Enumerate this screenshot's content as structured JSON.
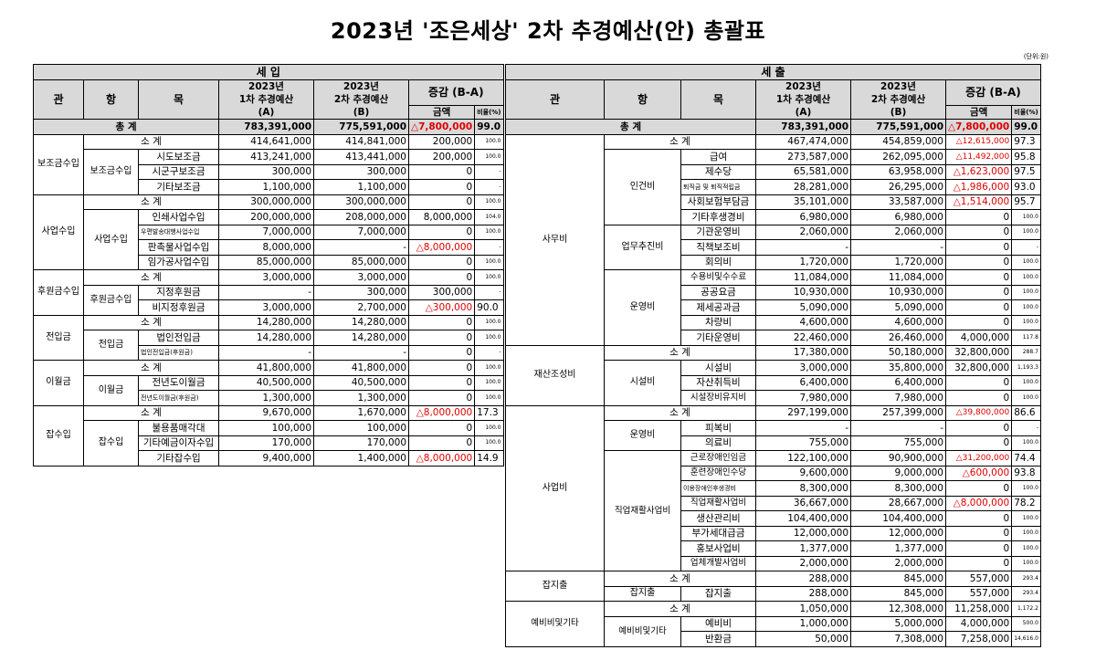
{
  "title": "2023년  '조은세상'  2차 추경예산(안) 총괄표",
  "unit": "(단위:원)",
  "income": {
    "section": "세    입",
    "headers": {
      "gwan": "관",
      "hang": "항",
      "mok": "목",
      "a_line1": "2023년",
      "a_line2": "1차 추경예산",
      "a_line3": "(A)",
      "b_line1": "2023년",
      "b_line2": "2차 추경예산",
      "b_line3": "(B)",
      "diff": "증감 (B-A)",
      "amount": "금액",
      "ratio": "비율(%)"
    },
    "total": {
      "label": "총 계",
      "a": "783,391,000",
      "b": "775,591,000",
      "amt": "△7,800,000",
      "ratio": "99.0"
    },
    "rows": [
      {
        "name": "소 계",
        "a": "414,641,000",
        "b": "414,841,000",
        "amt": "200,000",
        "ratio": "100.0"
      },
      {
        "name": "시도보조금",
        "a": "413,241,000",
        "b": "413,441,000",
        "amt": "200,000",
        "ratio": "100.0"
      },
      {
        "name": "시군구보조금",
        "a": "300,000",
        "b": "300,000",
        "amt": "0",
        "ratio": "-"
      },
      {
        "name": "기타보조금",
        "a": "1,100,000",
        "b": "1,100,000",
        "amt": "0",
        "ratio": "-"
      },
      {
        "name": "소 계",
        "a": "300,000,000",
        "b": "300,000,000",
        "amt": "0",
        "ratio": "100.0"
      },
      {
        "name": "인쇄사업수입",
        "a": "200,000,000",
        "b": "208,000,000",
        "amt": "8,000,000",
        "ratio": "104.0"
      },
      {
        "name": "우편발송대행사업수입",
        "a": "7,000,000",
        "b": "7,000,000",
        "amt": "0",
        "ratio": "100.0"
      },
      {
        "name": "판촉물사업수입",
        "a": "8,000,000",
        "b": "-",
        "amt": "△8,000,000",
        "ratio": "-"
      },
      {
        "name": "임가공사업수입",
        "a": "85,000,000",
        "b": "85,000,000",
        "amt": "0",
        "ratio": "100.0"
      },
      {
        "name": "소 계",
        "a": "3,000,000",
        "b": "3,000,000",
        "amt": "0",
        "ratio": "100.0"
      },
      {
        "name": "지정후원금",
        "a": "-",
        "b": "300,000",
        "amt": "300,000",
        "ratio": "-"
      },
      {
        "name": "비지정후원금",
        "a": "3,000,000",
        "b": "2,700,000",
        "amt": "△300,000",
        "ratio": "90.0"
      },
      {
        "name": "소 계",
        "a": "14,280,000",
        "b": "14,280,000",
        "amt": "0",
        "ratio": "100.0"
      },
      {
        "name": "법인전입금",
        "a": "14,280,000",
        "b": "14,280,000",
        "amt": "0",
        "ratio": "100.0"
      },
      {
        "name": "법인전입금(후원금)",
        "a": "-",
        "b": "-",
        "amt": "0",
        "ratio": "-"
      },
      {
        "name": "소 계",
        "a": "41,800,000",
        "b": "41,800,000",
        "amt": "0",
        "ratio": "100.0"
      },
      {
        "name": "전년도이월금",
        "a": "40,500,000",
        "b": "40,500,000",
        "amt": "0",
        "ratio": "100.0"
      },
      {
        "name": "전년도이월금(후원금)",
        "a": "1,300,000",
        "b": "1,300,000",
        "amt": "0",
        "ratio": "100.0"
      },
      {
        "name": "소 계",
        "a": "9,670,000",
        "b": "1,670,000",
        "amt": "△8,000,000",
        "ratio": "17.3"
      },
      {
        "name": "불용품매각대",
        "a": "100,000",
        "b": "100,000",
        "amt": "0",
        "ratio": "100.0"
      },
      {
        "name": "기타예금이자수입",
        "a": "170,000",
        "b": "170,000",
        "amt": "0",
        "ratio": "100.0"
      },
      {
        "name": "기타잡수입",
        "a": "9,400,000",
        "b": "1,400,000",
        "amt": "△8,000,000",
        "ratio": "14.9"
      }
    ],
    "groups": {
      "g1": "보조금수입",
      "h1": "보조금수입",
      "g2": "사업수입",
      "h2": "사업수입",
      "g3": "후원금수입",
      "h3": "후원금수입",
      "g4": "전입금",
      "h4": "전입금",
      "g5": "이월금",
      "h5": "이월금",
      "g6": "잡수입",
      "h6": "잡수입"
    }
  },
  "expense": {
    "section": "세    출",
    "headers": {
      "gwan": "관",
      "hang": "항",
      "mok": "목",
      "a_line1": "2023년",
      "a_line2": "1차 추경예산",
      "a_line3": "(A)",
      "b_line1": "2023년",
      "b_line2": "2차 추경예산",
      "b_line3": "(B)",
      "diff": "증감 (B-A)",
      "amount": "금액",
      "ratio": "비율(%)"
    },
    "total": {
      "label": "총 계",
      "a": "783,391,000",
      "b": "775,591,000",
      "amt": "△7,800,000",
      "ratio": "99.0"
    },
    "rows": [
      {
        "name": "소 계",
        "a": "467,474,000",
        "b": "454,859,000",
        "amt": "△12,615,000",
        "ratio": "97.3"
      },
      {
        "name": "급여",
        "a": "273,587,000",
        "b": "262,095,000",
        "amt": "△11,492,000",
        "ratio": "95.8"
      },
      {
        "name": "제수당",
        "a": "65,581,000",
        "b": "63,958,000",
        "amt": "△1,623,000",
        "ratio": "97.5"
      },
      {
        "name": "퇴직금 및 퇴직적립금",
        "a": "28,281,000",
        "b": "26,295,000",
        "amt": "△1,986,000",
        "ratio": "93.0"
      },
      {
        "name": "사회보험부담금",
        "a": "35,101,000",
        "b": "33,587,000",
        "amt": "△1,514,000",
        "ratio": "95.7"
      },
      {
        "name": "기타후생경비",
        "a": "6,980,000",
        "b": "6,980,000",
        "amt": "0",
        "ratio": "100.0"
      },
      {
        "name": "기관운영비",
        "a": "2,060,000",
        "b": "2,060,000",
        "amt": "0",
        "ratio": "100.0"
      },
      {
        "name": "직책보조비",
        "a": "-",
        "b": "-",
        "amt": "0",
        "ratio": "-"
      },
      {
        "name": "회의비",
        "a": "1,720,000",
        "b": "1,720,000",
        "amt": "0",
        "ratio": "100.0"
      },
      {
        "name": "수용비및수수료",
        "a": "11,084,000",
        "b": "11,084,000",
        "amt": "0",
        "ratio": "100.0"
      },
      {
        "name": "공공요금",
        "a": "10,930,000",
        "b": "10,930,000",
        "amt": "0",
        "ratio": "100.0"
      },
      {
        "name": "제세공과금",
        "a": "5,090,000",
        "b": "5,090,000",
        "amt": "0",
        "ratio": "100.0"
      },
      {
        "name": "차량비",
        "a": "4,600,000",
        "b": "4,600,000",
        "amt": "0",
        "ratio": "100.0"
      },
      {
        "name": "기타운영비",
        "a": "22,460,000",
        "b": "26,460,000",
        "amt": "4,000,000",
        "ratio": "117.8"
      },
      {
        "name": "소 계",
        "a": "17,380,000",
        "b": "50,180,000",
        "amt": "32,800,000",
        "ratio": "288.7"
      },
      {
        "name": "시설비",
        "a": "3,000,000",
        "b": "35,800,000",
        "amt": "32,800,000",
        "ratio": "1,193.3"
      },
      {
        "name": "자산취득비",
        "a": "6,400,000",
        "b": "6,400,000",
        "amt": "0",
        "ratio": "100.0"
      },
      {
        "name": "시설장비유지비",
        "a": "7,980,000",
        "b": "7,980,000",
        "amt": "0",
        "ratio": "100.0"
      },
      {
        "name": "소 계",
        "a": "297,199,000",
        "b": "257,399,000",
        "amt": "△39,800,000",
        "ratio": "86.6"
      },
      {
        "name": "피복비",
        "a": "-",
        "b": "-",
        "amt": "0",
        "ratio": "-"
      },
      {
        "name": "의료비",
        "a": "755,000",
        "b": "755,000",
        "amt": "0",
        "ratio": "100.0"
      },
      {
        "name": "근로장애인임금",
        "a": "122,100,000",
        "b": "90,900,000",
        "amt": "△31,200,000",
        "ratio": "74.4"
      },
      {
        "name": "훈련장애인수당",
        "a": "9,600,000",
        "b": "9,000,000",
        "amt": "△600,000",
        "ratio": "93.8"
      },
      {
        "name": "이용장애인후생경비",
        "a": "8,300,000",
        "b": "8,300,000",
        "amt": "0",
        "ratio": "100.0"
      },
      {
        "name": "직업재활사업비",
        "a": "36,667,000",
        "b": "28,667,000",
        "amt": "△8,000,000",
        "ratio": "78.2"
      },
      {
        "name": "생산관리비",
        "a": "104,400,000",
        "b": "104,400,000",
        "amt": "0",
        "ratio": "100.0"
      },
      {
        "name": "부가세대급금",
        "a": "12,000,000",
        "b": "12,000,000",
        "amt": "0",
        "ratio": "100.0"
      },
      {
        "name": "홍보사업비",
        "a": "1,377,000",
        "b": "1,377,000",
        "amt": "0",
        "ratio": "100.0"
      },
      {
        "name": "업체개발사업비",
        "a": "2,000,000",
        "b": "2,000,000",
        "amt": "0",
        "ratio": "100.0"
      },
      {
        "name": "소 계",
        "a": "288,000",
        "b": "845,000",
        "amt": "557,000",
        "ratio": "293.4"
      },
      {
        "name": "잡지출",
        "a": "288,000",
        "b": "845,000",
        "amt": "557,000",
        "ratio": "293.4"
      },
      {
        "name": "소 계",
        "a": "1,050,000",
        "b": "12,308,000",
        "amt": "11,258,000",
        "ratio": "1,172.2"
      },
      {
        "name": "예비비",
        "a": "1,000,000",
        "b": "5,000,000",
        "amt": "4,000,000",
        "ratio": "500.0"
      },
      {
        "name": "반환금",
        "a": "50,000",
        "b": "7,308,000",
        "amt": "7,258,000",
        "ratio": "14,616.0"
      }
    ],
    "groups": {
      "g1": "사무비",
      "h1": "인건비",
      "h2": "업무추진비",
      "h3": "운영비",
      "g2": "재산조성비",
      "h4": "시설비",
      "g3": "사업비",
      "h5": "운영비",
      "h6": "직업재활사업비",
      "g4": "잡지출",
      "h7": "잡지출",
      "g5": "예비비및기타",
      "h8": "예비비및기타"
    }
  }
}
